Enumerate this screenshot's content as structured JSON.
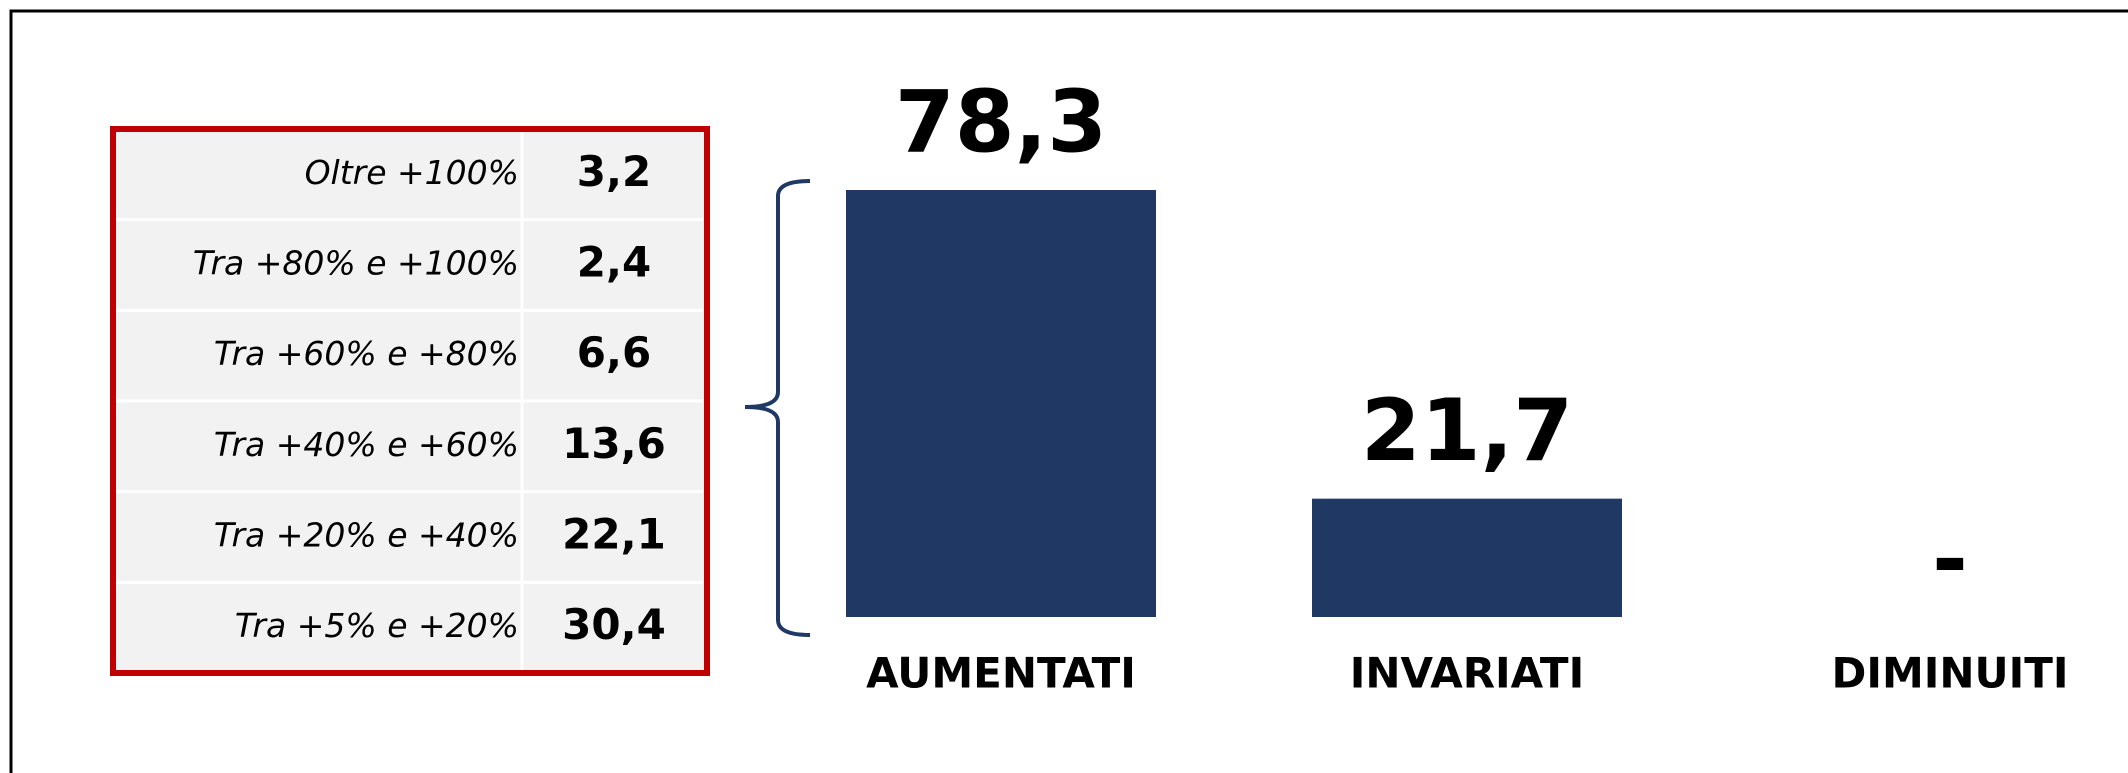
{
  "chart_data": {
    "type": "bar",
    "categories": [
      "AUMENTATI",
      "INVARIATI",
      "DIMINUITI"
    ],
    "values": [
      78.3,
      21.7,
      0
    ],
    "value_labels": [
      "78,3",
      "21,7",
      "-"
    ],
    "color": "#203864"
  },
  "table": {
    "rows": [
      [
        "Oltre +100%",
        "3,2"
      ],
      [
        "Tra +80% e +100%",
        "2,4"
      ],
      [
        "Tra +60% e +80%",
        "6,6"
      ],
      [
        "Tra +40% e +60%",
        "13,6"
      ],
      [
        "Tra +20% e +40%",
        "22,1"
      ],
      [
        "Tra +5% e +20%",
        "30,4"
      ]
    ]
  }
}
